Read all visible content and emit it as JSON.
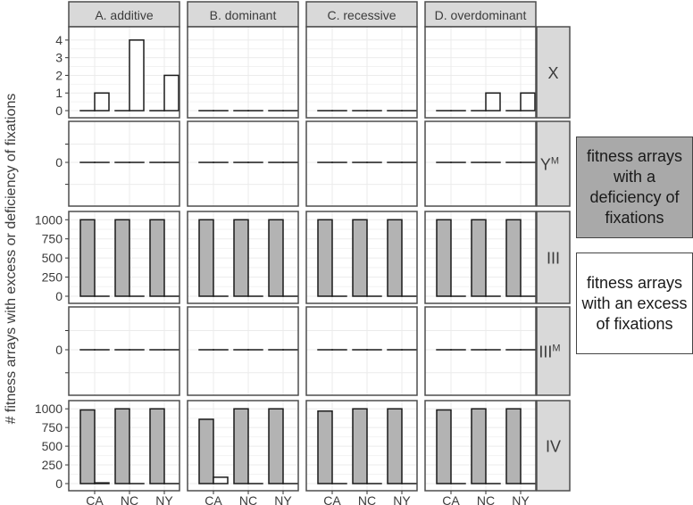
{
  "chart_data": {
    "type": "bar",
    "ylabel": "# fitness arrays with excess or deficiency of fixations",
    "columns": [
      "A. additive",
      "B. dominant",
      "C. recessive",
      "D. overdominant"
    ],
    "rows": [
      {
        "label": "X",
        "sup": "",
        "ylim": [
          0,
          4.5
        ],
        "ticks": [
          "0",
          "1",
          "2",
          "3",
          "4"
        ],
        "tickvals": [
          0,
          1,
          2,
          3,
          4
        ]
      },
      {
        "label": "Y",
        "sup": "M",
        "ylim": [
          -1,
          1
        ],
        "ticks": [
          "0"
        ],
        "tickvals": [
          0
        ]
      },
      {
        "label": "III",
        "sup": "",
        "ylim": [
          0,
          1050
        ],
        "ticks": [
          "0",
          "250",
          "500",
          "750",
          "1000"
        ],
        "tickvals": [
          0,
          250,
          500,
          750,
          1000
        ]
      },
      {
        "label": "III",
        "sup": "M",
        "ylim": [
          -1,
          1
        ],
        "ticks": [
          "0"
        ],
        "tickvals": [
          0
        ]
      },
      {
        "label": "IV",
        "sup": "",
        "ylim": [
          0,
          1050
        ],
        "ticks": [
          "0",
          "250",
          "500",
          "750",
          "1000"
        ],
        "tickvals": [
          0,
          250,
          500,
          750,
          1000
        ]
      }
    ],
    "categories": [
      "CA",
      "NC",
      "NY"
    ],
    "series": [
      {
        "name": "fitness arrays with a deficiency of fixations",
        "color": "#b3b3b3"
      },
      {
        "name": "fitness arrays with an excess of fixations",
        "color": "#ffffff"
      }
    ],
    "values": [
      [
        {
          "deficiency": [
            0,
            0,
            0
          ],
          "excess": [
            1,
            4,
            2
          ]
        },
        {
          "deficiency": [
            0,
            0,
            0
          ],
          "excess": [
            0,
            0,
            0
          ]
        },
        {
          "deficiency": [
            0,
            0,
            0
          ],
          "excess": [
            0,
            0,
            0
          ]
        },
        {
          "deficiency": [
            0,
            0,
            0
          ],
          "excess": [
            0,
            1,
            1
          ]
        }
      ],
      [
        {
          "deficiency": [
            0,
            0,
            0
          ],
          "excess": [
            0,
            0,
            0
          ]
        },
        {
          "deficiency": [
            0,
            0,
            0
          ],
          "excess": [
            0,
            0,
            0
          ]
        },
        {
          "deficiency": [
            0,
            0,
            0
          ],
          "excess": [
            0,
            0,
            0
          ]
        },
        {
          "deficiency": [
            0,
            0,
            0
          ],
          "excess": [
            0,
            0,
            0
          ]
        }
      ],
      [
        {
          "deficiency": [
            1000,
            1000,
            1000
          ],
          "excess": [
            0,
            0,
            0
          ]
        },
        {
          "deficiency": [
            1000,
            1000,
            1000
          ],
          "excess": [
            0,
            0,
            0
          ]
        },
        {
          "deficiency": [
            1000,
            1000,
            1000
          ],
          "excess": [
            0,
            0,
            0
          ]
        },
        {
          "deficiency": [
            1000,
            1000,
            1000
          ],
          "excess": [
            0,
            0,
            0
          ]
        }
      ],
      [
        {
          "deficiency": [
            0,
            0,
            0
          ],
          "excess": [
            0,
            0,
            0
          ]
        },
        {
          "deficiency": [
            0,
            0,
            0
          ],
          "excess": [
            0,
            0,
            0
          ]
        },
        {
          "deficiency": [
            0,
            0,
            0
          ],
          "excess": [
            0,
            0,
            0
          ]
        },
        {
          "deficiency": [
            0,
            0,
            0
          ],
          "excess": [
            0,
            0,
            0
          ]
        }
      ],
      [
        {
          "deficiency": [
            985,
            1000,
            1000
          ],
          "excess": [
            10,
            0,
            0
          ]
        },
        {
          "deficiency": [
            860,
            1000,
            1000
          ],
          "excess": [
            85,
            0,
            0
          ]
        },
        {
          "deficiency": [
            970,
            1000,
            1000
          ],
          "excess": [
            0,
            0,
            0
          ]
        },
        {
          "deficiency": [
            985,
            1000,
            1000
          ],
          "excess": [
            0,
            0,
            0
          ]
        }
      ]
    ],
    "grid": true,
    "legend_position": "right",
    "colors": {
      "strip_fill": "#d9d9d9",
      "grid": "#ebebeb",
      "border": "#4d4d4d",
      "bar_outline": "#1a1a1a"
    }
  },
  "legend": {
    "deficiency_label": "fitness arrays with a deficiency of fixations",
    "excess_label": "fitness arrays with an excess of fixations"
  }
}
